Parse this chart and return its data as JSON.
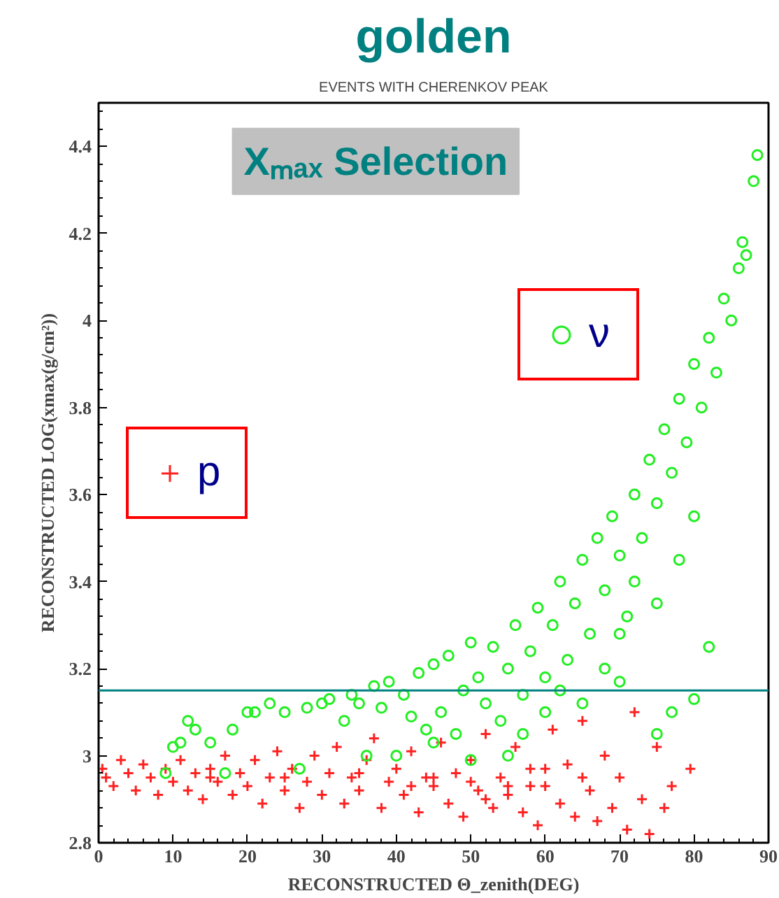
{
  "chart_data": {
    "type": "scatter",
    "title": "golden",
    "subtitle": "EVENTS WITH CHERENKOV PEAK",
    "xlabel": "RECONSTRUCTED Θ_zenith(DEG)",
    "ylabel": "RECONSTRUCTED LOG(xmax(g/cm²))",
    "annotations": [
      "Xₘₐₓ Selection"
    ],
    "xlim": [
      0,
      90
    ],
    "xticks": [
      0,
      10,
      20,
      30,
      40,
      50,
      60,
      70,
      80,
      90
    ],
    "ylim": [
      2.8,
      4.5
    ],
    "yticks": [
      2.8,
      3,
      3.2,
      3.4,
      3.6,
      3.8,
      4,
      4.2,
      4.4
    ],
    "grid": false,
    "legend": "center left",
    "ref_lines": [
      {
        "axis": "y",
        "value": 3.15,
        "color": "#008080"
      }
    ],
    "series": [
      {
        "name": "p",
        "color": "#ff2020",
        "marker": "cross",
        "x": [
          0.5,
          1,
          2,
          3,
          4,
          5,
          6,
          7,
          8,
          9,
          10,
          11,
          12,
          13,
          14,
          15,
          16,
          17,
          18,
          19,
          20,
          21,
          22,
          23,
          24,
          25,
          26,
          27,
          28,
          29,
          30,
          31,
          32,
          33,
          34,
          35,
          36,
          37,
          38,
          39,
          40,
          41,
          42,
          43,
          44,
          45,
          46,
          47,
          48,
          49,
          50,
          51,
          52,
          53,
          54,
          55,
          56,
          57,
          58,
          59,
          60,
          61,
          62,
          63,
          64,
          65,
          66,
          67,
          68,
          69,
          70,
          71,
          72,
          73,
          74,
          75,
          76,
          77,
          79.5,
          45,
          50,
          55,
          58,
          35,
          25,
          15,
          60,
          65,
          42,
          52
        ],
        "values": [
          2.97,
          2.95,
          2.93,
          2.99,
          2.96,
          2.92,
          2.98,
          2.95,
          2.91,
          2.97,
          2.94,
          2.99,
          2.92,
          2.96,
          2.9,
          2.97,
          2.94,
          3.0,
          2.91,
          2.96,
          2.93,
          2.99,
          2.89,
          2.95,
          3.01,
          2.92,
          2.97,
          2.88,
          2.94,
          3.0,
          2.91,
          2.96,
          3.02,
          2.89,
          2.95,
          2.92,
          2.99,
          3.04,
          2.88,
          2.94,
          2.97,
          2.91,
          3.01,
          2.87,
          2.95,
          2.93,
          3.03,
          2.89,
          2.96,
          2.86,
          2.99,
          2.92,
          3.05,
          2.88,
          2.95,
          2.91,
          3.02,
          2.87,
          2.97,
          2.84,
          2.93,
          3.06,
          2.89,
          2.98,
          2.86,
          3.08,
          2.92,
          2.85,
          3.0,
          2.88,
          2.95,
          2.83,
          3.1,
          2.9,
          2.82,
          3.02,
          2.88,
          2.93,
          2.97,
          2.95,
          2.94,
          2.93,
          2.93,
          2.96,
          2.95,
          2.95,
          2.97,
          2.95,
          2.93,
          2.9
        ]
      },
      {
        "name": "ν",
        "color": "#22ee22",
        "marker": "circle",
        "x": [
          9,
          10,
          11,
          12,
          13,
          15,
          17,
          18,
          20,
          21,
          23,
          25,
          27,
          28,
          30,
          31,
          33,
          34,
          35,
          36,
          37,
          38,
          39,
          40,
          41,
          42,
          43,
          44,
          45,
          46,
          47,
          48,
          49,
          50,
          51,
          52,
          53,
          54,
          55,
          56,
          57,
          58,
          59,
          60,
          61,
          62,
          63,
          64,
          65,
          66,
          67,
          68,
          69,
          70,
          71,
          72,
          73,
          74,
          75,
          76,
          77,
          78,
          79,
          80,
          81,
          82,
          83,
          84,
          85,
          86,
          87,
          88,
          88.5,
          86.5,
          82,
          80,
          77,
          75,
          70,
          65,
          60,
          55,
          50,
          45,
          70,
          75,
          78,
          80,
          72,
          68,
          62,
          57
        ],
        "values": [
          2.96,
          3.02,
          3.03,
          3.08,
          3.06,
          3.03,
          2.96,
          3.06,
          3.1,
          3.1,
          3.12,
          3.1,
          2.97,
          3.11,
          3.12,
          3.13,
          3.08,
          3.14,
          3.12,
          3.0,
          3.16,
          3.11,
          3.17,
          3.0,
          3.14,
          3.09,
          3.19,
          3.06,
          3.21,
          3.1,
          3.23,
          3.05,
          3.15,
          3.26,
          3.18,
          3.12,
          3.25,
          3.08,
          3.2,
          3.3,
          3.14,
          3.24,
          3.34,
          3.18,
          3.3,
          3.4,
          3.22,
          3.35,
          3.45,
          3.28,
          3.5,
          3.38,
          3.55,
          3.46,
          3.32,
          3.6,
          3.5,
          3.68,
          3.58,
          3.75,
          3.65,
          3.82,
          3.72,
          3.9,
          3.8,
          3.96,
          3.88,
          4.05,
          4.0,
          4.12,
          4.15,
          4.32,
          4.38,
          4.18,
          3.25,
          3.13,
          3.1,
          3.05,
          3.17,
          3.12,
          3.1,
          3.0,
          2.99,
          3.03,
          3.28,
          3.35,
          3.45,
          3.55,
          3.4,
          3.2,
          3.15,
          3.05
        ]
      }
    ]
  }
}
